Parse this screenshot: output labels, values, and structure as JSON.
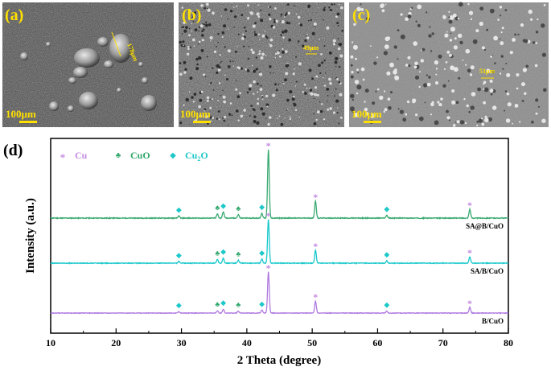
{
  "panels": [
    {
      "label": "(a)",
      "scale_label": "100μm",
      "measure_label": "178μm"
    },
    {
      "label": "(b)",
      "scale_label": "100μm",
      "measure_label": "49μm"
    },
    {
      "label": "(c)",
      "scale_label": "100μm",
      "measure_label": "51μm"
    }
  ],
  "colors": {
    "cu": "#c48be0",
    "cuo": "#2fa66a",
    "cu2o": "#1ec8c8",
    "sa_b_cuo": "#3aaa72",
    "sa_b_cuo_cyan": "#18c8cc",
    "b_cuo": "#b07ae0",
    "yellow": "#ffe000"
  },
  "chart_data": {
    "type": "line",
    "panel_label": "(d)",
    "xlabel": "2 Theta (degree)",
    "ylabel": "Intensity (a.u.)",
    "xlim": [
      10,
      80
    ],
    "xticks": [
      10,
      20,
      30,
      40,
      50,
      60,
      70,
      80
    ],
    "yticks": [],
    "grid": false,
    "legend": {
      "placement": "top-left",
      "entries": [
        {
          "symbol": "*",
          "name": "Cu",
          "color": "#c48be0"
        },
        {
          "symbol": "♣",
          "name": "CuO",
          "color": "#2fa66a"
        },
        {
          "symbol": "◆",
          "name": "Cu2O",
          "color": "#1ec8c8"
        }
      ]
    },
    "series": [
      {
        "name": "SA@B/CuO",
        "color": "#3aaa72",
        "offset": 2.0,
        "peaks": [
          [
            29.6,
            0.03
          ],
          [
            35.5,
            0.06
          ],
          [
            36.4,
            0.09
          ],
          [
            38.7,
            0.05
          ],
          [
            42.3,
            0.07
          ],
          [
            43.3,
            1.0
          ],
          [
            50.5,
            0.25
          ],
          [
            61.4,
            0.04
          ],
          [
            74.1,
            0.13
          ]
        ],
        "markers": [
          {
            "x": 29.6,
            "type": "cu2o"
          },
          {
            "x": 35.5,
            "type": "cuo"
          },
          {
            "x": 36.4,
            "type": "cu2o"
          },
          {
            "x": 38.7,
            "type": "cuo"
          },
          {
            "x": 42.3,
            "type": "cu2o"
          },
          {
            "x": 43.3,
            "type": "cu"
          },
          {
            "x": 50.5,
            "type": "cu"
          },
          {
            "x": 61.4,
            "type": "cu2o"
          },
          {
            "x": 74.1,
            "type": "cu"
          }
        ]
      },
      {
        "name": "SA/B/CuO",
        "color": "#18c8cc",
        "offset": 1.0,
        "peaks": [
          [
            29.6,
            0.03
          ],
          [
            35.5,
            0.06
          ],
          [
            36.4,
            0.09
          ],
          [
            38.7,
            0.05
          ],
          [
            42.3,
            0.07
          ],
          [
            43.3,
            0.75
          ],
          [
            50.5,
            0.22
          ],
          [
            61.4,
            0.04
          ],
          [
            74.1,
            0.11
          ]
        ],
        "markers": [
          {
            "x": 29.6,
            "type": "cu2o"
          },
          {
            "x": 35.5,
            "type": "cuo"
          },
          {
            "x": 36.4,
            "type": "cu2o"
          },
          {
            "x": 38.7,
            "type": "cuo"
          },
          {
            "x": 42.3,
            "type": "cu2o"
          },
          {
            "x": 43.3,
            "type": "cu"
          },
          {
            "x": 50.5,
            "type": "cu"
          },
          {
            "x": 61.4,
            "type": "cu2o"
          },
          {
            "x": 74.1,
            "type": "cu"
          }
        ]
      },
      {
        "name": "B/CuO",
        "color": "#b07ae0",
        "offset": 0.0,
        "peaks": [
          [
            29.6,
            0.03
          ],
          [
            35.5,
            0.05
          ],
          [
            36.4,
            0.08
          ],
          [
            38.7,
            0.04
          ],
          [
            42.3,
            0.06
          ],
          [
            43.3,
            0.85
          ],
          [
            50.5,
            0.25
          ],
          [
            61.4,
            0.04
          ],
          [
            74.1,
            0.12
          ]
        ],
        "markers": [
          {
            "x": 29.6,
            "type": "cu2o"
          },
          {
            "x": 35.5,
            "type": "cuo"
          },
          {
            "x": 36.4,
            "type": "cu2o"
          },
          {
            "x": 38.7,
            "type": "cuo"
          },
          {
            "x": 42.3,
            "type": "cu2o"
          },
          {
            "x": 43.3,
            "type": "cu"
          },
          {
            "x": 50.5,
            "type": "cu"
          },
          {
            "x": 61.4,
            "type": "cu2o"
          },
          {
            "x": 74.1,
            "type": "cu"
          }
        ]
      }
    ]
  }
}
